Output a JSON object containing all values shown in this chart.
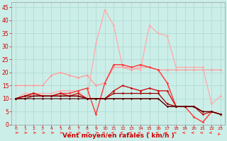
{
  "xlabel": "Vent moyen/en rafales ( km/h )",
  "ylim": [
    0,
    47
  ],
  "xlim": [
    -0.5,
    23.5
  ],
  "yticks": [
    0,
    5,
    10,
    15,
    20,
    25,
    30,
    35,
    40,
    45
  ],
  "xticks": [
    0,
    1,
    2,
    3,
    4,
    5,
    6,
    7,
    8,
    9,
    10,
    11,
    12,
    13,
    14,
    15,
    16,
    17,
    18,
    19,
    20,
    21,
    22,
    23
  ],
  "bg_color": "#cceee8",
  "grid_color": "#aad8d0",
  "series": [
    {
      "x": [
        0,
        1,
        2,
        3,
        4,
        5,
        6,
        7,
        8,
        9,
        10,
        11,
        12,
        13,
        14,
        15,
        16,
        17,
        18,
        19,
        20,
        21,
        22,
        23
      ],
      "y": [
        15,
        15,
        15,
        15,
        19,
        20,
        19,
        18,
        19,
        15,
        16,
        22,
        22,
        21,
        22,
        22,
        21,
        21,
        21,
        21,
        21,
        21,
        21,
        21
      ],
      "color": "#ff9999",
      "lw": 0.9,
      "marker": "D",
      "ms": 1.8,
      "zorder": 3
    },
    {
      "x": [
        0,
        1,
        2,
        3,
        4,
        5,
        6,
        7,
        8,
        9,
        10,
        11,
        12,
        13,
        14,
        15,
        16,
        17,
        18,
        19,
        20,
        21,
        22,
        23
      ],
      "y": [
        10,
        12,
        12,
        12,
        12,
        13,
        13,
        13,
        10,
        31,
        44,
        38,
        22,
        22,
        21,
        38,
        35,
        34,
        22,
        22,
        22,
        22,
        8,
        11
      ],
      "color": "#ffaaaa",
      "lw": 0.9,
      "marker": "D",
      "ms": 1.8,
      "zorder": 3
    },
    {
      "x": [
        0,
        1,
        2,
        3,
        4,
        5,
        6,
        7,
        8,
        9,
        10,
        11,
        12,
        13,
        14,
        15,
        16,
        17,
        18,
        19,
        20,
        21,
        22,
        23
      ],
      "y": [
        10,
        11,
        12,
        11,
        11,
        12,
        12,
        13,
        14,
        4,
        16,
        23,
        23,
        22,
        23,
        22,
        21,
        16,
        7,
        7,
        3,
        1,
        5,
        4
      ],
      "color": "#ff3333",
      "lw": 1.0,
      "marker": "D",
      "ms": 1.8,
      "zorder": 4
    },
    {
      "x": [
        0,
        1,
        2,
        3,
        4,
        5,
        6,
        7,
        8,
        9,
        10,
        11,
        12,
        13,
        14,
        15,
        16,
        17,
        18,
        19,
        20,
        21,
        22,
        23
      ],
      "y": [
        10,
        11,
        12,
        11,
        11,
        12,
        11,
        12,
        10,
        10,
        10,
        13,
        15,
        14,
        13,
        14,
        13,
        13,
        7,
        7,
        7,
        4,
        5,
        4
      ],
      "color": "#cc0000",
      "lw": 0.9,
      "marker": "D",
      "ms": 1.8,
      "zorder": 4
    },
    {
      "x": [
        0,
        1,
        2,
        3,
        4,
        5,
        6,
        7,
        8,
        9,
        10,
        11,
        12,
        13,
        14,
        15,
        16,
        17,
        18,
        19,
        20,
        21,
        22,
        23
      ],
      "y": [
        10,
        11,
        11,
        11,
        11,
        11,
        11,
        11,
        10,
        10,
        10,
        12,
        12,
        12,
        12,
        12,
        12,
        8,
        7,
        7,
        7,
        5,
        5,
        4
      ],
      "color": "#990000",
      "lw": 0.9,
      "marker": "D",
      "ms": 1.8,
      "zorder": 4
    },
    {
      "x": [
        0,
        1,
        2,
        3,
        4,
        5,
        6,
        7,
        8,
        9,
        10,
        11,
        12,
        13,
        14,
        15,
        16,
        17,
        18,
        19,
        20,
        21,
        22,
        23
      ],
      "y": [
        10,
        10,
        11,
        11,
        11,
        11,
        11,
        11,
        10,
        10,
        10,
        10,
        10,
        10,
        10,
        10,
        10,
        7,
        7,
        7,
        7,
        5,
        5,
        4
      ],
      "color": "#770000",
      "lw": 0.8,
      "marker": "D",
      "ms": 1.5,
      "zorder": 4
    },
    {
      "x": [
        0,
        1,
        2,
        3,
        4,
        5,
        6,
        7,
        8,
        9,
        10,
        11,
        12,
        13,
        14,
        15,
        16,
        17,
        18,
        19,
        20,
        21,
        22,
        23
      ],
      "y": [
        10,
        10,
        10,
        10,
        10,
        10,
        10,
        10,
        10,
        10,
        10,
        10,
        10,
        10,
        10,
        10,
        10,
        7,
        7,
        7,
        7,
        5,
        5,
        4
      ],
      "color": "#550000",
      "lw": 0.8,
      "marker": "D",
      "ms": 1.5,
      "zorder": 4
    }
  ],
  "arrow_color": "#ff3333",
  "forward_arrows_x": [
    0,
    1,
    2,
    3,
    4,
    5,
    6,
    7,
    8,
    9
  ],
  "backward_arrows_x": [
    10,
    11,
    12,
    13,
    14,
    15,
    16,
    17,
    18,
    19,
    20,
    21,
    22
  ],
  "last_arrow_down": 23,
  "tick_color": "#cc0000",
  "label_color": "#cc0000",
  "xlabel_fontsize": 6.5,
  "ytick_fontsize": 5.5,
  "xtick_fontsize": 4.5
}
